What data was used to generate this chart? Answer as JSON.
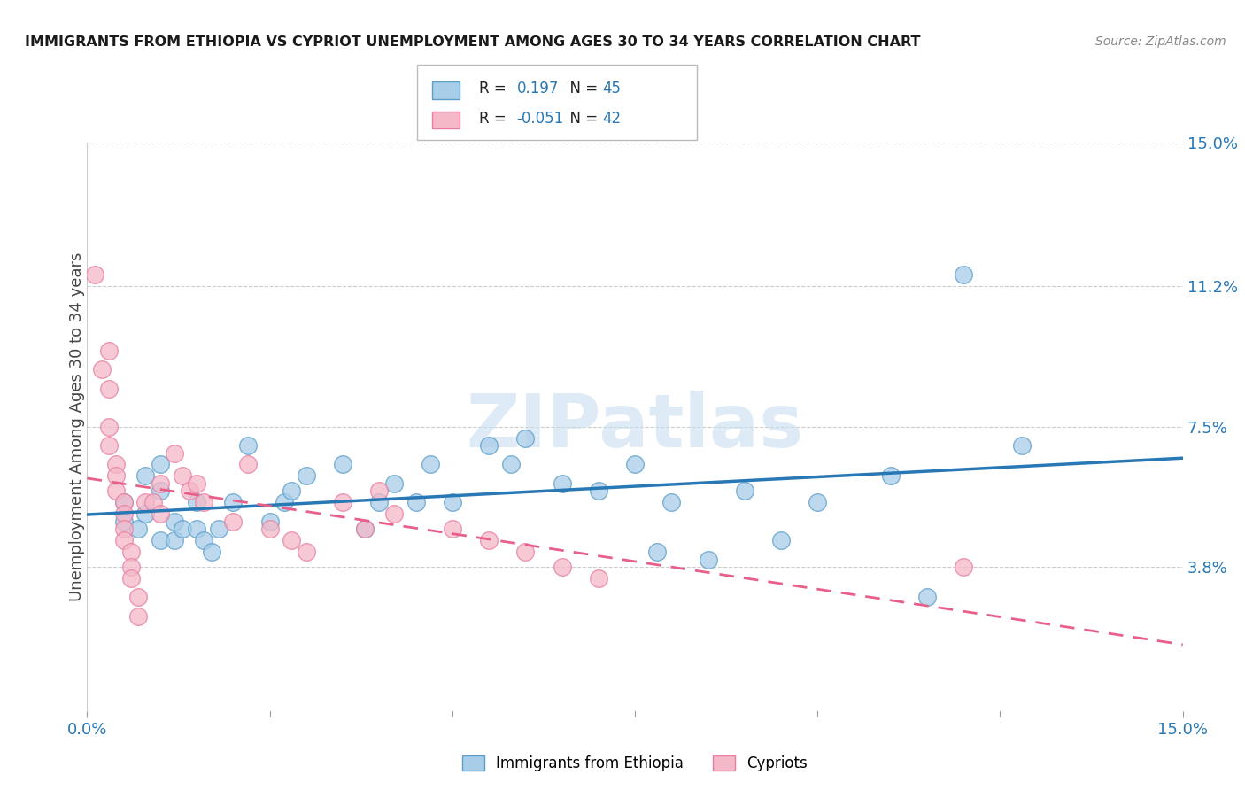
{
  "title": "IMMIGRANTS FROM ETHIOPIA VS CYPRIOT UNEMPLOYMENT AMONG AGES 30 TO 34 YEARS CORRELATION CHART",
  "source": "Source: ZipAtlas.com",
  "ylabel": "Unemployment Among Ages 30 to 34 years",
  "xmin": 0.0,
  "xmax": 0.15,
  "ymin": 0.0,
  "ymax": 0.15,
  "yticks": [
    0.038,
    0.075,
    0.112,
    0.15
  ],
  "ytick_labels": [
    "3.8%",
    "7.5%",
    "11.2%",
    "15.0%"
  ],
  "xticks": [
    0.0,
    0.15
  ],
  "xtick_labels": [
    "0.0%",
    "15.0%"
  ],
  "legend_label1": "Immigrants from Ethiopia",
  "legend_label2": "Cypriots",
  "color_blue": "#a8cde8",
  "color_pink": "#f4b8c8",
  "color_blue_edge": "#5b9ec9",
  "color_pink_edge": "#e87da0",
  "color_blue_line": "#2878b5",
  "color_pink_line": "#e8608a",
  "background_color": "#ffffff",
  "grid_color": "#cccccc",
  "watermark": "ZIPatlas",
  "watermark_color": "#c8dff0",
  "blue_points": [
    [
      0.005,
      0.055
    ],
    [
      0.005,
      0.05
    ],
    [
      0.007,
      0.048
    ],
    [
      0.008,
      0.052
    ],
    [
      0.008,
      0.062
    ],
    [
      0.01,
      0.058
    ],
    [
      0.01,
      0.065
    ],
    [
      0.01,
      0.045
    ],
    [
      0.012,
      0.05
    ],
    [
      0.012,
      0.045
    ],
    [
      0.013,
      0.048
    ],
    [
      0.015,
      0.048
    ],
    [
      0.015,
      0.055
    ],
    [
      0.016,
      0.045
    ],
    [
      0.017,
      0.042
    ],
    [
      0.018,
      0.048
    ],
    [
      0.02,
      0.055
    ],
    [
      0.022,
      0.07
    ],
    [
      0.025,
      0.05
    ],
    [
      0.027,
      0.055
    ],
    [
      0.028,
      0.058
    ],
    [
      0.03,
      0.062
    ],
    [
      0.035,
      0.065
    ],
    [
      0.038,
      0.048
    ],
    [
      0.04,
      0.055
    ],
    [
      0.042,
      0.06
    ],
    [
      0.045,
      0.055
    ],
    [
      0.047,
      0.065
    ],
    [
      0.05,
      0.055
    ],
    [
      0.055,
      0.07
    ],
    [
      0.058,
      0.065
    ],
    [
      0.06,
      0.072
    ],
    [
      0.065,
      0.06
    ],
    [
      0.07,
      0.058
    ],
    [
      0.075,
      0.065
    ],
    [
      0.078,
      0.042
    ],
    [
      0.08,
      0.055
    ],
    [
      0.085,
      0.04
    ],
    [
      0.09,
      0.058
    ],
    [
      0.095,
      0.045
    ],
    [
      0.1,
      0.055
    ],
    [
      0.11,
      0.062
    ],
    [
      0.115,
      0.03
    ],
    [
      0.12,
      0.115
    ],
    [
      0.128,
      0.07
    ]
  ],
  "pink_points": [
    [
      0.001,
      0.115
    ],
    [
      0.002,
      0.09
    ],
    [
      0.003,
      0.095
    ],
    [
      0.003,
      0.085
    ],
    [
      0.003,
      0.075
    ],
    [
      0.003,
      0.07
    ],
    [
      0.004,
      0.065
    ],
    [
      0.004,
      0.062
    ],
    [
      0.004,
      0.058
    ],
    [
      0.005,
      0.055
    ],
    [
      0.005,
      0.052
    ],
    [
      0.005,
      0.048
    ],
    [
      0.005,
      0.045
    ],
    [
      0.006,
      0.042
    ],
    [
      0.006,
      0.038
    ],
    [
      0.006,
      0.035
    ],
    [
      0.007,
      0.03
    ],
    [
      0.007,
      0.025
    ],
    [
      0.008,
      0.055
    ],
    [
      0.009,
      0.055
    ],
    [
      0.01,
      0.06
    ],
    [
      0.01,
      0.052
    ],
    [
      0.012,
      0.068
    ],
    [
      0.013,
      0.062
    ],
    [
      0.014,
      0.058
    ],
    [
      0.015,
      0.06
    ],
    [
      0.016,
      0.055
    ],
    [
      0.02,
      0.05
    ],
    [
      0.022,
      0.065
    ],
    [
      0.025,
      0.048
    ],
    [
      0.028,
      0.045
    ],
    [
      0.03,
      0.042
    ],
    [
      0.035,
      0.055
    ],
    [
      0.038,
      0.048
    ],
    [
      0.04,
      0.058
    ],
    [
      0.042,
      0.052
    ],
    [
      0.05,
      0.048
    ],
    [
      0.055,
      0.045
    ],
    [
      0.06,
      0.042
    ],
    [
      0.065,
      0.038
    ],
    [
      0.07,
      0.035
    ],
    [
      0.12,
      0.038
    ]
  ]
}
